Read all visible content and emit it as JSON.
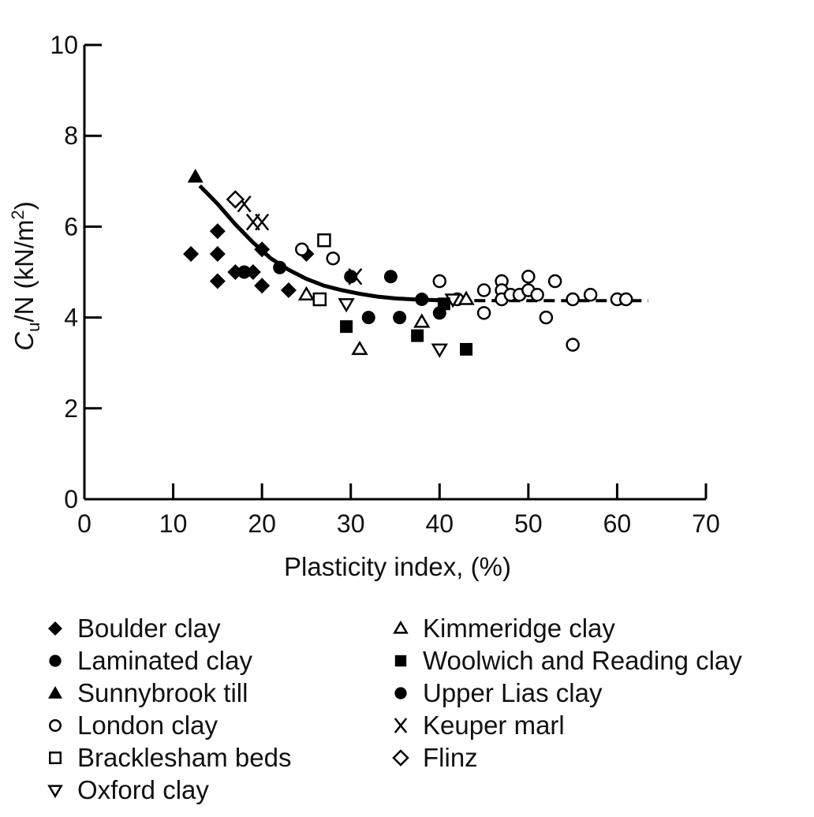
{
  "chart_data": {
    "type": "scatter",
    "xlabel": "Plasticity index, (%)",
    "ylabel_main": "C",
    "ylabel_sub": "u",
    "ylabel_rest": "/N (kN/m",
    "ylabel_sup": "2",
    "ylabel_close": ")",
    "xlim": [
      0,
      70
    ],
    "ylim": [
      0,
      10
    ],
    "x_ticks": [
      0,
      10,
      20,
      30,
      40,
      50,
      60,
      70
    ],
    "y_ticks": [
      0,
      2,
      4,
      6,
      8,
      10
    ],
    "grid": false,
    "legend_position": "bottom",
    "series": [
      {
        "name": "Boulder clay",
        "marker": "diamond-filled",
        "points": [
          [
            12,
            5.4
          ],
          [
            15,
            5.9
          ],
          [
            15,
            5.4
          ],
          [
            15,
            4.8
          ],
          [
            17,
            5.0
          ],
          [
            19,
            5.0
          ],
          [
            20,
            4.7
          ],
          [
            20,
            5.5
          ],
          [
            23,
            4.6
          ],
          [
            25,
            5.4
          ]
        ]
      },
      {
        "name": "Laminated clay",
        "marker": "circle-filled",
        "points": [
          [
            18,
            5.0
          ],
          [
            22,
            5.1
          ]
        ]
      },
      {
        "name": "Sunnybrook till",
        "marker": "triangle-filled",
        "points": [
          [
            12.5,
            7.1
          ]
        ]
      },
      {
        "name": "London clay",
        "marker": "circle-open",
        "points": [
          [
            24.5,
            5.5
          ],
          [
            28,
            5.3
          ],
          [
            40,
            4.8
          ],
          [
            42,
            4.4
          ],
          [
            45,
            4.6
          ],
          [
            45,
            4.1
          ],
          [
            47,
            4.8
          ],
          [
            47,
            4.6
          ],
          [
            47,
            4.4
          ],
          [
            48,
            4.5
          ],
          [
            49,
            4.5
          ],
          [
            50,
            4.9
          ],
          [
            50,
            4.6
          ],
          [
            51,
            4.5
          ],
          [
            52,
            4.0
          ],
          [
            53,
            4.8
          ],
          [
            55,
            4.4
          ],
          [
            55,
            3.4
          ],
          [
            57,
            4.5
          ],
          [
            60,
            4.4
          ],
          [
            61,
            4.4
          ]
        ]
      },
      {
        "name": "Bracklesham beds",
        "marker": "square-open",
        "points": [
          [
            27,
            5.7
          ],
          [
            26.5,
            4.4
          ]
        ]
      },
      {
        "name": "Oxford clay",
        "marker": "triangle-down-open",
        "points": [
          [
            29.5,
            4.3
          ],
          [
            40,
            3.3
          ],
          [
            41.5,
            4.4
          ]
        ]
      },
      {
        "name": "Kimmeridge clay",
        "marker": "triangle-open",
        "points": [
          [
            25,
            4.5
          ],
          [
            31,
            3.3
          ],
          [
            38,
            3.9
          ],
          [
            43,
            4.4
          ]
        ]
      },
      {
        "name": "Woolwich and Reading clay",
        "marker": "square-filled",
        "points": [
          [
            29.5,
            3.8
          ],
          [
            37.5,
            3.6
          ],
          [
            40.5,
            4.3
          ],
          [
            43,
            3.3
          ]
        ]
      },
      {
        "name": "Upper Lias clay",
        "marker": "circle-filled",
        "points": [
          [
            30,
            4.9
          ],
          [
            32,
            4.0
          ],
          [
            34.5,
            4.9
          ],
          [
            35.5,
            4.0
          ],
          [
            38,
            4.4
          ],
          [
            40,
            4.1
          ]
        ]
      },
      {
        "name": "Keuper marl",
        "marker": "x",
        "points": [
          [
            18,
            6.5
          ],
          [
            19,
            6.1
          ],
          [
            20,
            6.1
          ],
          [
            30.5,
            4.9
          ]
        ]
      },
      {
        "name": "Flinz",
        "marker": "diamond-open",
        "points": [
          [
            17,
            6.6
          ]
        ]
      }
    ],
    "trend_line": [
      [
        13,
        6.9
      ],
      [
        15,
        6.5
      ],
      [
        17,
        6.05
      ],
      [
        19,
        5.65
      ],
      [
        21,
        5.3
      ],
      [
        23,
        5.05
      ],
      [
        25,
        4.85
      ],
      [
        27,
        4.7
      ],
      [
        29,
        4.6
      ],
      [
        31,
        4.52
      ],
      [
        33,
        4.46
      ],
      [
        35,
        4.42
      ],
      [
        37,
        4.4
      ],
      [
        40,
        4.38
      ],
      [
        45,
        4.37
      ],
      [
        50,
        4.37
      ],
      [
        55,
        4.37
      ],
      [
        60,
        4.37
      ],
      [
        63.5,
        4.37
      ]
    ]
  }
}
